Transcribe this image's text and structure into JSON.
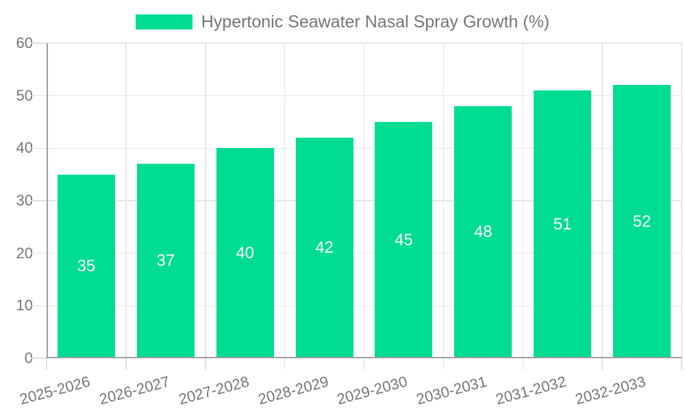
{
  "chart_data": {
    "type": "bar",
    "series_name": "Hypertonic Seawater Nasal Spray Growth (%)",
    "categories": [
      "2025-2026",
      "2026-2027",
      "2027-2028",
      "2028-2029",
      "2029-2030",
      "2030-2031",
      "2031-2032",
      "2032-2033"
    ],
    "values": [
      35,
      37,
      40,
      42,
      45,
      48,
      51,
      52
    ],
    "title": "",
    "xlabel": "",
    "ylabel": "",
    "ylim": [
      0,
      60
    ],
    "yticks": [
      0,
      10,
      20,
      30,
      40,
      50,
      60
    ],
    "grid": true,
    "legend_position": "top-center",
    "value_labels_position": "inside-center",
    "colors": {
      "bar": "#00DC92",
      "axis_text": "#757575",
      "value_label": "#ffffff",
      "grid_line": "#e6e6e6",
      "tick_mark": "#e0e0e0",
      "axis_line": "#9e9e9e",
      "background": "#ffffff"
    }
  }
}
